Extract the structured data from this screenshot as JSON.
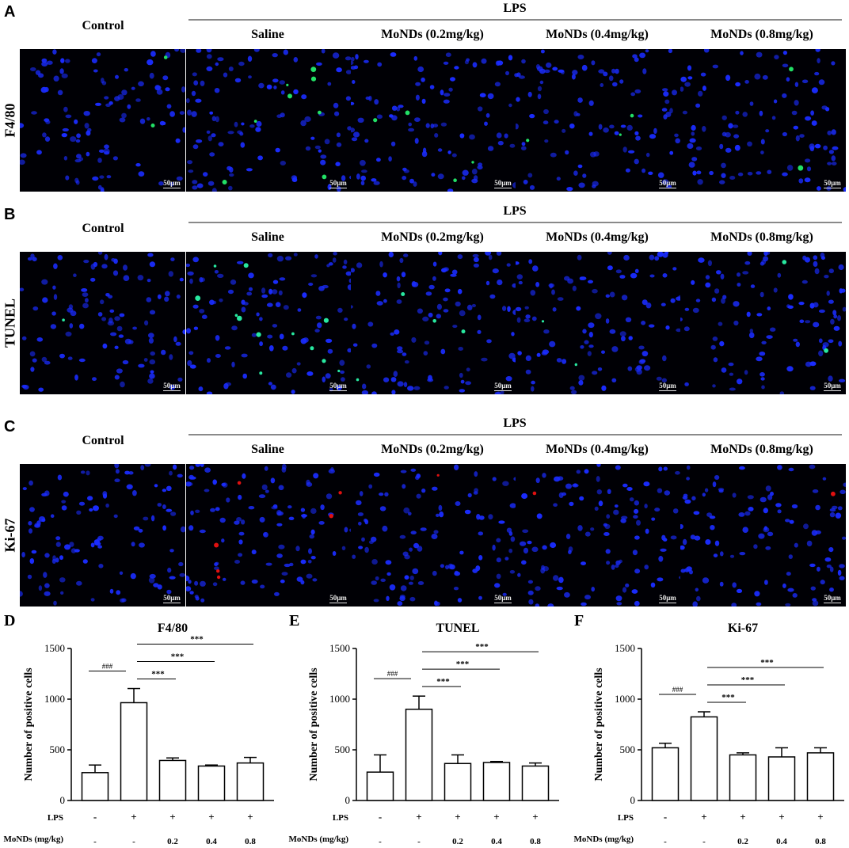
{
  "panel_letters": [
    "A",
    "B",
    "C",
    "D",
    "E",
    "F"
  ],
  "micro_rows": [
    {
      "letter": "A",
      "stain": "F4/80",
      "group_label": "LPS",
      "control_label": "Control",
      "columns": [
        "Saline",
        "MoNDs (0.2mg/kg)",
        "MoNDs (0.4mg/kg)",
        "MoNDs (0.8mg/kg)"
      ],
      "positive_color": "#22e066",
      "positive_counts": [
        2,
        8,
        4,
        3,
        2
      ],
      "scale_label": "50μm"
    },
    {
      "letter": "B",
      "stain": "TUNEL",
      "group_label": "LPS",
      "control_label": "Control",
      "columns": [
        "Saline",
        "MoNDs (0.2mg/kg)",
        "MoNDs (0.4mg/kg)",
        "MoNDs (0.8mg/kg)"
      ],
      "positive_color": "#28e8a0",
      "positive_counts": [
        1,
        12,
        4,
        2,
        2
      ],
      "scale_label": "50μm"
    },
    {
      "letter": "C",
      "stain": "Ki-67",
      "group_label": "LPS",
      "control_label": "Control",
      "columns": [
        "Saline",
        "MoNDs (0.2mg/kg)",
        "MoNDs (0.4mg/kg)",
        "MoNDs (0.8mg/kg)"
      ],
      "positive_color": "#e01010",
      "positive_counts": [
        0,
        6,
        1,
        1,
        1
      ],
      "scale_label": "50μm"
    }
  ],
  "colors": {
    "nuclei": "#1a2cff",
    "background": "#000005",
    "lps_line": "#8a8a8a"
  },
  "chart_data": [
    {
      "letter": "D",
      "type": "bar",
      "title": "F4/80",
      "ylabel": "Number of positive cells",
      "ylim": [
        0,
        1500
      ],
      "yticks": [
        0,
        500,
        1000,
        1500
      ],
      "row_labels": [
        "LPS",
        "MoNDs (mg/kg)"
      ],
      "lps": [
        "-",
        "+",
        "+",
        "+",
        "+"
      ],
      "monds": [
        "-",
        "-",
        "0.2",
        "0.4",
        "0.8"
      ],
      "values": [
        275,
        965,
        395,
        340,
        370
      ],
      "errors": [
        75,
        140,
        25,
        10,
        55
      ],
      "sig_control": "###",
      "sig_compare": [
        "***",
        "***",
        "***"
      ]
    },
    {
      "letter": "E",
      "type": "bar",
      "title": "TUNEL",
      "ylabel": "Number of positive cells",
      "ylim": [
        0,
        1500
      ],
      "yticks": [
        0,
        500,
        1000,
        1500
      ],
      "row_labels": [
        "LPS",
        "MoNDs (mg/kg)"
      ],
      "lps": [
        "-",
        "+",
        "+",
        "+",
        "+"
      ],
      "monds": [
        "-",
        "-",
        "0.2",
        "0.4",
        "0.8"
      ],
      "values": [
        280,
        900,
        365,
        375,
        340
      ],
      "errors": [
        170,
        130,
        85,
        10,
        30
      ],
      "sig_control": "###",
      "sig_compare": [
        "***",
        "***",
        "***"
      ]
    },
    {
      "letter": "F",
      "type": "bar",
      "title": "Ki-67",
      "ylabel": "Number of positive cells",
      "ylim": [
        0,
        1500
      ],
      "yticks": [
        0,
        500,
        1000,
        1500
      ],
      "row_labels": [
        "LPS",
        "MoNDs (mg/kg)"
      ],
      "lps": [
        "-",
        "+",
        "+",
        "+",
        "+"
      ],
      "monds": [
        "-",
        "-",
        "0.2",
        "0.4",
        "0.8"
      ],
      "values": [
        520,
        825,
        450,
        430,
        470
      ],
      "errors": [
        45,
        50,
        20,
        90,
        50
      ],
      "sig_control": "###",
      "sig_compare": [
        "***",
        "***",
        "***"
      ]
    }
  ]
}
